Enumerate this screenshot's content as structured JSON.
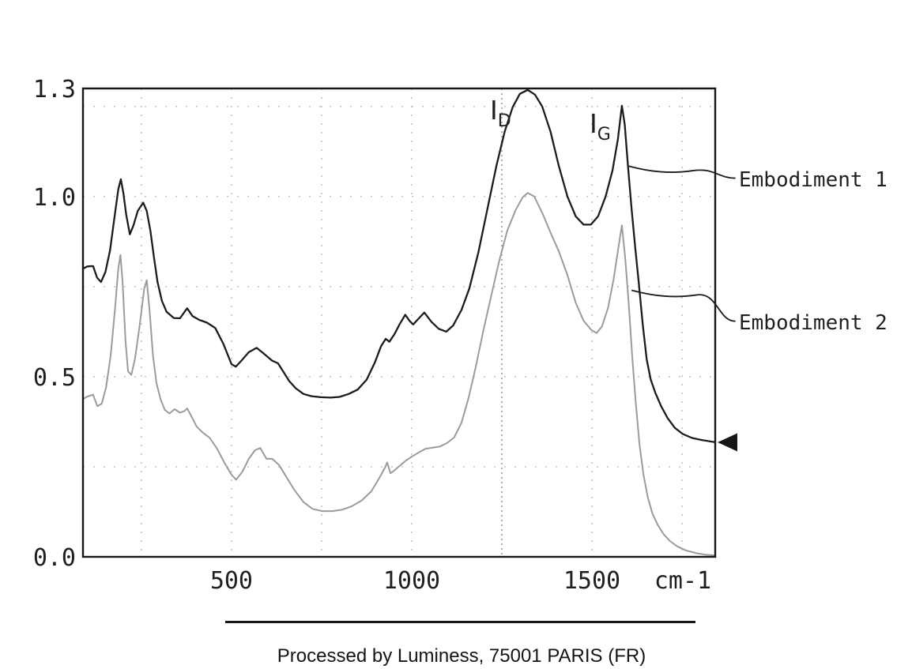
{
  "figure": {
    "caption": "Processed by Luminess, 75001 PARIS (FR)",
    "annotations": {
      "peak_d": {
        "base": "I",
        "sub": "D"
      },
      "peak_g": {
        "base": "I",
        "sub": "G"
      },
      "series1_label": "Embodiment 1",
      "series2_label": "Embodiment 2"
    }
  },
  "chart_data": {
    "type": "line",
    "title": "",
    "xlabel": "cm-1",
    "ylabel": "",
    "xlim": [
      88,
      1842
    ],
    "ylim": [
      0,
      1.3
    ],
    "grid": "dotted",
    "legend_position": "right-outside",
    "x_ticks": [
      {
        "label": "500",
        "value": 500
      },
      {
        "label": "1000",
        "value": 1000
      },
      {
        "label": "1500",
        "value": 1500
      }
    ],
    "x_unit_label": "cm-1",
    "y_ticks": [
      {
        "label": "1.3",
        "value": 1.3
      },
      {
        "label": "1.0",
        "value": 1.0
      },
      {
        "label": "0.5",
        "value": 0.5
      },
      {
        "label": "0.0",
        "value": 0.0
      }
    ],
    "x_gridlines": [
      250,
      500,
      750,
      1000,
      1250,
      1500,
      1750
    ],
    "x_gridline_strong": 1250,
    "y_gridlines": [
      0.25,
      0.5,
      0.75,
      1.0,
      1.25
    ],
    "peak_annotations": [
      {
        "text": "I_D",
        "x": 1320,
        "peak_of": "Embodiment 1"
      },
      {
        "text": "I_G",
        "x": 1583,
        "peak_of": "Embodiment 1"
      }
    ],
    "callouts": [
      {
        "label": "Embodiment 1",
        "from": [
          1600,
          1.085
        ],
        "to": [
          1898,
          1.051
        ]
      },
      {
        "label": "Embodiment 2",
        "from": [
          1610,
          0.74
        ],
        "to": [
          1898,
          0.654
        ]
      }
    ],
    "arrow_marker": {
      "at_series": "Embodiment 1",
      "x": 1842,
      "y": 0.318,
      "direction": "left"
    },
    "series": [
      {
        "name": "Embodiment 1",
        "color": "#1c1c1c",
        "width": 2.3,
        "points": [
          [
            88,
            0.8
          ],
          [
            100,
            0.806
          ],
          [
            116,
            0.807
          ],
          [
            127,
            0.775
          ],
          [
            138,
            0.763
          ],
          [
            150,
            0.79
          ],
          [
            163,
            0.85
          ],
          [
            175,
            0.94
          ],
          [
            186,
            1.02
          ],
          [
            193,
            1.048
          ],
          [
            200,
            1.01
          ],
          [
            208,
            0.95
          ],
          [
            218,
            0.895
          ],
          [
            228,
            0.92
          ],
          [
            240,
            0.96
          ],
          [
            255,
            0.983
          ],
          [
            265,
            0.96
          ],
          [
            275,
            0.905
          ],
          [
            285,
            0.83
          ],
          [
            295,
            0.762
          ],
          [
            307,
            0.71
          ],
          [
            320,
            0.68
          ],
          [
            340,
            0.663
          ],
          [
            357,
            0.662
          ],
          [
            377,
            0.69
          ],
          [
            392,
            0.668
          ],
          [
            410,
            0.658
          ],
          [
            432,
            0.65
          ],
          [
            455,
            0.635
          ],
          [
            478,
            0.59
          ],
          [
            500,
            0.535
          ],
          [
            512,
            0.528
          ],
          [
            528,
            0.545
          ],
          [
            548,
            0.568
          ],
          [
            570,
            0.58
          ],
          [
            592,
            0.562
          ],
          [
            612,
            0.545
          ],
          [
            629,
            0.537
          ],
          [
            645,
            0.512
          ],
          [
            660,
            0.488
          ],
          [
            678,
            0.468
          ],
          [
            700,
            0.452
          ],
          [
            722,
            0.446
          ],
          [
            748,
            0.443
          ],
          [
            775,
            0.442
          ],
          [
            800,
            0.444
          ],
          [
            825,
            0.452
          ],
          [
            850,
            0.464
          ],
          [
            875,
            0.492
          ],
          [
            898,
            0.54
          ],
          [
            915,
            0.585
          ],
          [
            928,
            0.605
          ],
          [
            938,
            0.597
          ],
          [
            952,
            0.618
          ],
          [
            966,
            0.645
          ],
          [
            982,
            0.672
          ],
          [
            994,
            0.655
          ],
          [
            1004,
            0.645
          ],
          [
            1018,
            0.66
          ],
          [
            1035,
            0.678
          ],
          [
            1055,
            0.652
          ],
          [
            1075,
            0.633
          ],
          [
            1096,
            0.625
          ],
          [
            1115,
            0.642
          ],
          [
            1138,
            0.685
          ],
          [
            1160,
            0.745
          ],
          [
            1185,
            0.845
          ],
          [
            1210,
            0.965
          ],
          [
            1235,
            1.085
          ],
          [
            1258,
            1.18
          ],
          [
            1280,
            1.248
          ],
          [
            1300,
            1.285
          ],
          [
            1322,
            1.296
          ],
          [
            1342,
            1.283
          ],
          [
            1362,
            1.25
          ],
          [
            1385,
            1.18
          ],
          [
            1408,
            1.085
          ],
          [
            1432,
            1.0
          ],
          [
            1455,
            0.945
          ],
          [
            1477,
            0.922
          ],
          [
            1497,
            0.922
          ],
          [
            1517,
            0.945
          ],
          [
            1538,
            1.0
          ],
          [
            1557,
            1.072
          ],
          [
            1572,
            1.16
          ],
          [
            1583,
            1.252
          ],
          [
            1591,
            1.2
          ],
          [
            1600,
            1.085
          ],
          [
            1610,
            0.965
          ],
          [
            1620,
            0.86
          ],
          [
            1630,
            0.76
          ],
          [
            1641,
            0.645
          ],
          [
            1652,
            0.548
          ],
          [
            1663,
            0.492
          ],
          [
            1676,
            0.455
          ],
          [
            1692,
            0.418
          ],
          [
            1710,
            0.385
          ],
          [
            1730,
            0.358
          ],
          [
            1752,
            0.341
          ],
          [
            1778,
            0.33
          ],
          [
            1806,
            0.324
          ],
          [
            1842,
            0.318
          ]
        ]
      },
      {
        "name": "Embodiment 2",
        "color": "#9b9b9b",
        "width": 2.0,
        "points": [
          [
            88,
            0.438
          ],
          [
            100,
            0.445
          ],
          [
            116,
            0.45
          ],
          [
            128,
            0.418
          ],
          [
            140,
            0.425
          ],
          [
            152,
            0.47
          ],
          [
            165,
            0.56
          ],
          [
            177,
            0.69
          ],
          [
            186,
            0.8
          ],
          [
            192,
            0.838
          ],
          [
            198,
            0.76
          ],
          [
            206,
            0.6
          ],
          [
            213,
            0.515
          ],
          [
            222,
            0.505
          ],
          [
            232,
            0.548
          ],
          [
            245,
            0.64
          ],
          [
            258,
            0.745
          ],
          [
            265,
            0.768
          ],
          [
            273,
            0.68
          ],
          [
            282,
            0.56
          ],
          [
            292,
            0.482
          ],
          [
            303,
            0.438
          ],
          [
            315,
            0.408
          ],
          [
            328,
            0.398
          ],
          [
            342,
            0.41
          ],
          [
            357,
            0.4
          ],
          [
            370,
            0.405
          ],
          [
            377,
            0.412
          ],
          [
            388,
            0.392
          ],
          [
            403,
            0.362
          ],
          [
            420,
            0.345
          ],
          [
            440,
            0.33
          ],
          [
            460,
            0.3
          ],
          [
            480,
            0.262
          ],
          [
            500,
            0.228
          ],
          [
            513,
            0.214
          ],
          [
            530,
            0.236
          ],
          [
            548,
            0.272
          ],
          [
            565,
            0.296
          ],
          [
            580,
            0.302
          ],
          [
            597,
            0.272
          ],
          [
            613,
            0.272
          ],
          [
            632,
            0.255
          ],
          [
            652,
            0.222
          ],
          [
            675,
            0.185
          ],
          [
            700,
            0.152
          ],
          [
            725,
            0.133
          ],
          [
            752,
            0.127
          ],
          [
            780,
            0.127
          ],
          [
            808,
            0.131
          ],
          [
            835,
            0.141
          ],
          [
            862,
            0.157
          ],
          [
            888,
            0.182
          ],
          [
            912,
            0.222
          ],
          [
            926,
            0.248
          ],
          [
            932,
            0.262
          ],
          [
            941,
            0.232
          ],
          [
            952,
            0.24
          ],
          [
            966,
            0.252
          ],
          [
            982,
            0.266
          ],
          [
            1000,
            0.278
          ],
          [
            1020,
            0.29
          ],
          [
            1038,
            0.3
          ],
          [
            1058,
            0.303
          ],
          [
            1078,
            0.306
          ],
          [
            1098,
            0.316
          ],
          [
            1118,
            0.332
          ],
          [
            1138,
            0.372
          ],
          [
            1158,
            0.442
          ],
          [
            1178,
            0.528
          ],
          [
            1198,
            0.625
          ],
          [
            1220,
            0.722
          ],
          [
            1242,
            0.818
          ],
          [
            1265,
            0.905
          ],
          [
            1288,
            0.962
          ],
          [
            1308,
            0.998
          ],
          [
            1322,
            1.01
          ],
          [
            1340,
            1.0
          ],
          [
            1362,
            0.955
          ],
          [
            1385,
            0.9
          ],
          [
            1408,
            0.848
          ],
          [
            1432,
            0.782
          ],
          [
            1455,
            0.705
          ],
          [
            1477,
            0.655
          ],
          [
            1498,
            0.63
          ],
          [
            1513,
            0.621
          ],
          [
            1528,
            0.64
          ],
          [
            1545,
            0.692
          ],
          [
            1560,
            0.77
          ],
          [
            1572,
            0.85
          ],
          [
            1583,
            0.92
          ],
          [
            1592,
            0.832
          ],
          [
            1602,
            0.705
          ],
          [
            1612,
            0.552
          ],
          [
            1622,
            0.422
          ],
          [
            1632,
            0.312
          ],
          [
            1643,
            0.228
          ],
          [
            1655,
            0.165
          ],
          [
            1668,
            0.12
          ],
          [
            1683,
            0.088
          ],
          [
            1698,
            0.064
          ],
          [
            1715,
            0.045
          ],
          [
            1735,
            0.03
          ],
          [
            1760,
            0.018
          ],
          [
            1790,
            0.01
          ],
          [
            1815,
            0.006
          ],
          [
            1842,
            0.004
          ]
        ]
      }
    ]
  }
}
